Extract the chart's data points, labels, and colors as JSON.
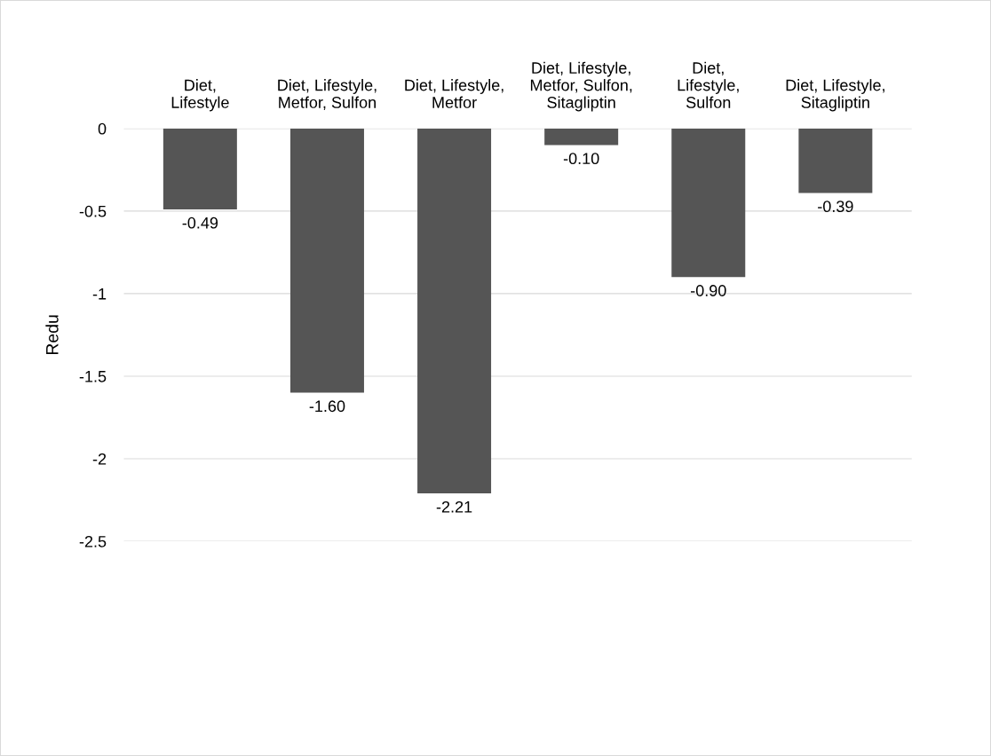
{
  "chart_data": {
    "type": "bar",
    "categories": [
      "Diet,\nLifestyle",
      "Diet, Lifestyle,\nMetfor, Sulfon",
      "Diet, Lifestyle,\nMetfor",
      "Diet, Lifestyle,\nMetfor, Sulfon,\nSitagliptin",
      "Diet,\nLifestyle,\nSulfon",
      "Diet, Lifestyle,\nSitagliptin"
    ],
    "values": [
      -0.49,
      -1.6,
      -2.21,
      -0.1,
      -0.9,
      -0.39
    ],
    "value_labels": [
      "-0.49",
      "-1.60",
      "-2.21",
      "-0.10",
      "-0.90",
      "-0.39"
    ],
    "color": "#555555",
    "ylabel": "Redu",
    "ylim": [
      -2.5,
      0
    ],
    "yticks": [
      0,
      {
        "value": -0.5,
        "label": "-0.5"
      },
      -1,
      {
        "value": -1.5,
        "label": "-1.5"
      },
      -2,
      {
        "value": -2.5,
        "label": "-2.5"
      }
    ],
    "grid": "y"
  }
}
